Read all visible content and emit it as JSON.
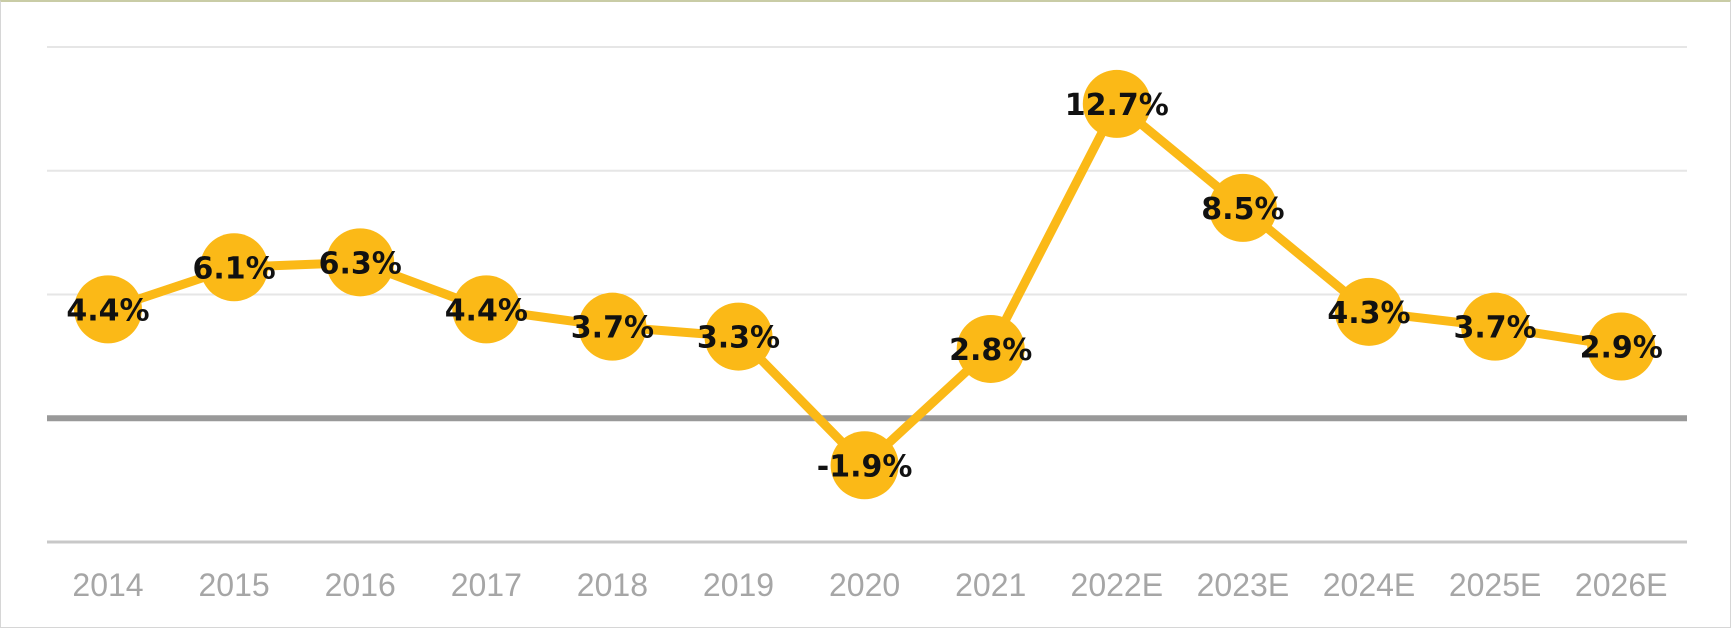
{
  "chart_data": {
    "type": "line",
    "title": "",
    "xlabel": "",
    "ylabel": "",
    "categories": [
      "2014",
      "2015",
      "2016",
      "2017",
      "2018",
      "2019",
      "2020",
      "2021",
      "2022E",
      "2023E",
      "2024E",
      "2025E",
      "2026E"
    ],
    "series": [
      {
        "values": [
          4.4,
          6.1,
          6.3,
          4.4,
          3.7,
          3.3,
          -1.9,
          2.8,
          12.7,
          8.5,
          4.3,
          3.7,
          2.9
        ],
        "labels": [
          "4.4%",
          "6.1%",
          "6.3%",
          "4.4%",
          "3.7%",
          "3.3%",
          "-1.9%",
          "2.8%",
          "12.7%",
          "8.5%",
          "4.3%",
          "3.7%",
          "2.9%"
        ],
        "color": "#fbb917"
      }
    ],
    "ylim": [
      -5,
      15
    ],
    "y_gridlines": [
      -5,
      0,
      5,
      10,
      15
    ],
    "y_tick_labels_visible": false,
    "grid": true,
    "zero_line_color": "#999999",
    "grid_color": "#e6e6e6",
    "tick_label_color": "#a6a6a6"
  }
}
